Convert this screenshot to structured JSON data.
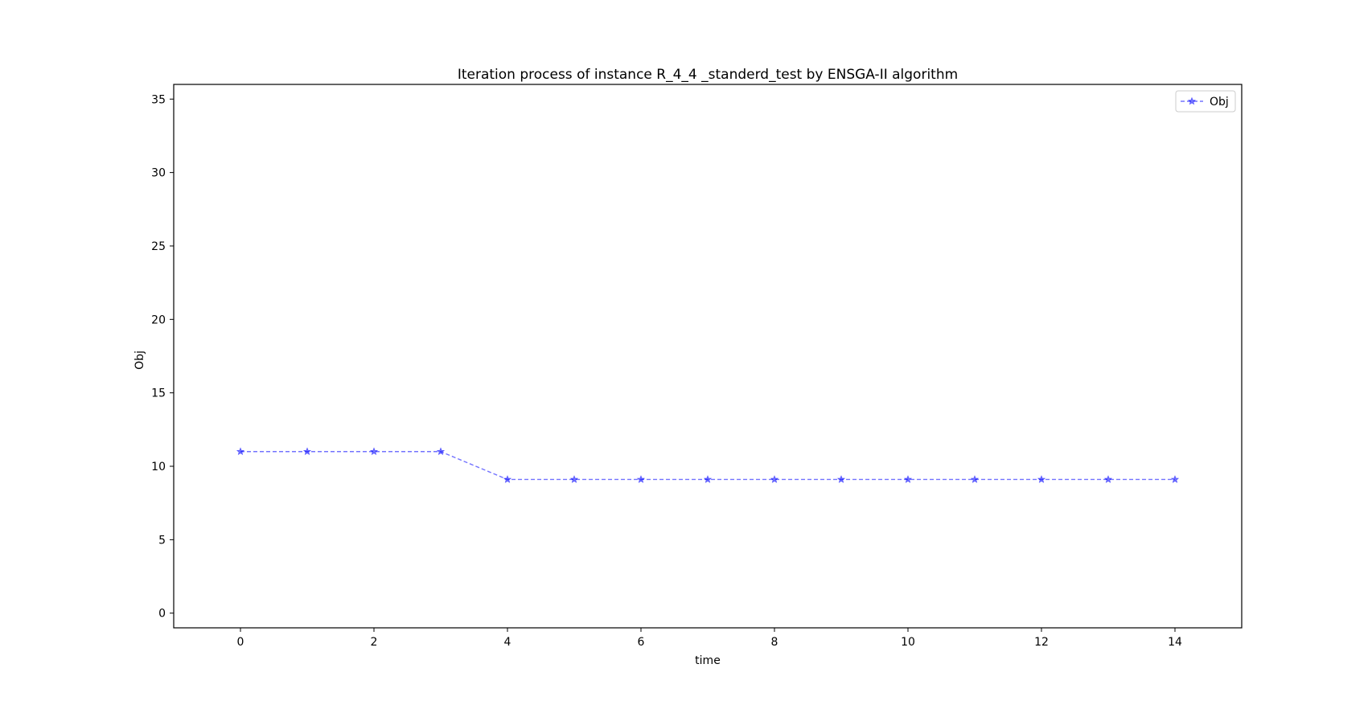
{
  "chart_data": {
    "type": "line",
    "title": "Iteration process of instance R_4_4 _standerd_test by ENSGA-II algorithm",
    "xlabel": "time",
    "ylabel": "Obj",
    "xlim": [
      -1,
      15
    ],
    "ylim": [
      -1,
      36
    ],
    "x_ticks": [
      0,
      2,
      4,
      6,
      8,
      10,
      12,
      14
    ],
    "y_ticks": [
      0,
      5,
      10,
      15,
      20,
      25,
      30,
      35
    ],
    "grid": false,
    "legend_position": "top-right",
    "series": [
      {
        "name": "Obj",
        "color": "#0000ff",
        "line_style": "dashed",
        "marker": "star",
        "x": [
          0,
          1,
          2,
          3,
          4,
          5,
          6,
          7,
          8,
          9,
          10,
          11,
          12,
          13,
          14
        ],
        "values": [
          11,
          11,
          11,
          11,
          9.1,
          9.1,
          9.1,
          9.1,
          9.1,
          9.1,
          9.1,
          9.1,
          9.1,
          9.1,
          9.1
        ]
      }
    ]
  }
}
